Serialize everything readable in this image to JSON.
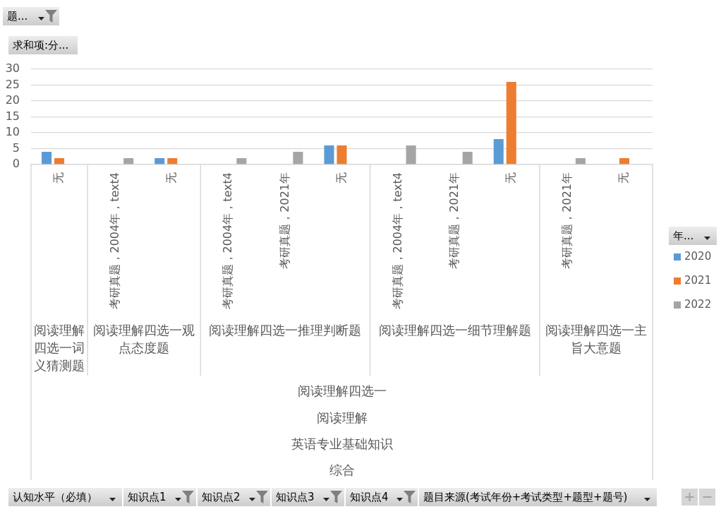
{
  "chart_data": {
    "type": "bar",
    "ylabel": "求和项:分...",
    "legend_title": "年...",
    "categories": [
      "无",
      "考研真题，2004年，text4",
      "无",
      "考研真题，2004年，text4",
      "考研真题，2021年",
      "无",
      "考研真题，2004年，text4",
      "考研真题，2021年",
      "无",
      "考研真题，2021年",
      "无"
    ],
    "series": [
      {
        "name": "2020",
        "color": "#5b9bd5",
        "values": [
          4,
          null,
          2,
          null,
          null,
          6,
          null,
          null,
          8,
          null,
          null
        ]
      },
      {
        "name": "2021",
        "color": "#ed7d31",
        "values": [
          2,
          null,
          2,
          null,
          null,
          6,
          null,
          null,
          26,
          null,
          2
        ]
      },
      {
        "name": "2022",
        "color": "#a5a5a5",
        "values": [
          null,
          2,
          null,
          2,
          4,
          null,
          6,
          4,
          null,
          2,
          null
        ]
      }
    ],
    "ylim": [
      0,
      30
    ],
    "yticks": [
      0,
      5,
      10,
      15,
      20,
      25,
      30
    ],
    "grid": "y",
    "legend": "right",
    "annotations": [
      "题...",
      "阅读理解四选一词义猜测题",
      "阅读理解四选一观点态度题",
      "阅读理解四选一推理判断题",
      "阅读理解四选一细节理解题",
      "阅读理解四选一主旨大意题",
      "阅读理解四选一",
      "阅读理解",
      "英语专业基础知识",
      "综合",
      "认知水平（必填）",
      "知识点1",
      "知识点2",
      "知识点3",
      "知识点4",
      "题目来源(考试年份+考试类型+题型+题号)"
    ]
  }
}
